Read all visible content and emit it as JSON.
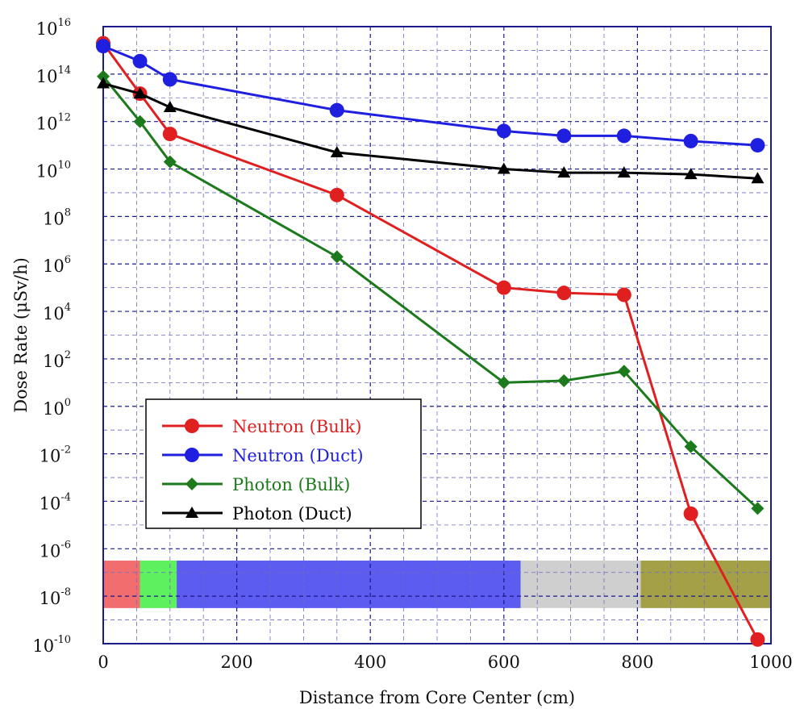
{
  "chart_data": {
    "type": "line",
    "xlabel": "Distance from Core Center (cm)",
    "ylabel": "Dose Rate (μSv/h)",
    "xlim": [
      0,
      1000
    ],
    "ylim": [
      -10,
      16
    ],
    "y_scale": "log10",
    "x_ticks": [
      "0",
      "200",
      "400",
      "600",
      "800",
      "1000"
    ],
    "y_ticks": [
      {
        "base": "10",
        "exp": "16"
      },
      {
        "base": "10",
        "exp": "14"
      },
      {
        "base": "10",
        "exp": "12"
      },
      {
        "base": "10",
        "exp": "10"
      },
      {
        "base": "10",
        "exp": "8"
      },
      {
        "base": "10",
        "exp": "6"
      },
      {
        "base": "10",
        "exp": "4"
      },
      {
        "base": "10",
        "exp": "2"
      },
      {
        "base": "10",
        "exp": "0"
      },
      {
        "base": "10",
        "exp": "-2"
      },
      {
        "base": "10",
        "exp": "-4"
      },
      {
        "base": "10",
        "exp": "-6"
      },
      {
        "base": "10",
        "exp": "-8"
      },
      {
        "base": "10",
        "exp": "-10"
      }
    ],
    "grid": true,
    "legend_position": "lower-left",
    "regions": [
      {
        "from": 0,
        "to": 55,
        "color": "#f26d6d"
      },
      {
        "from": 55,
        "to": 110,
        "color": "#5ef05e"
      },
      {
        "from": 110,
        "to": 625,
        "color": "#5c5cf0"
      },
      {
        "from": 625,
        "to": 805,
        "color": "#cfcfcf"
      },
      {
        "from": 805,
        "to": 1000,
        "color": "#a3a048"
      }
    ],
    "series": [
      {
        "name": "Neutron (Bulk)",
        "color": "#e02020",
        "marker": "circle",
        "x": [
          0,
          55,
          100,
          350,
          600,
          690,
          780,
          880,
          980
        ],
        "y": [
          2000000000000000.0,
          15000000000000.0,
          300000000000.0,
          800000000.0,
          100000.0,
          60000.0,
          50000.0,
          3e-05,
          1.5e-10
        ]
      },
      {
        "name": "Neutron (Duct)",
        "color": "#1f1fe0",
        "marker": "circle",
        "x": [
          0,
          55,
          100,
          350,
          600,
          690,
          780,
          880,
          980
        ],
        "y": [
          1500000000000000.0,
          350000000000000.0,
          60000000000000.0,
          3000000000000.0,
          400000000000.0,
          250000000000.0,
          250000000000.0,
          150000000000.0,
          100000000000.0
        ]
      },
      {
        "name": "Photon (Bulk)",
        "color": "#1c7a1c",
        "marker": "diamond",
        "x": [
          0,
          55,
          100,
          350,
          600,
          690,
          780,
          880,
          980
        ],
        "y": [
          80000000000000.0,
          1000000000000.0,
          20000000000.0,
          2000000.0,
          10,
          12,
          30,
          0.02,
          5e-05
        ]
      },
      {
        "name": "Photon (Duct)",
        "color": "#000000",
        "marker": "triangle",
        "x": [
          0,
          55,
          100,
          350,
          600,
          690,
          780,
          880,
          980
        ],
        "y": [
          40000000000000.0,
          15000000000000.0,
          4000000000000.0,
          50000000000.0,
          10000000000.0,
          7000000000.0,
          7000000000.0,
          6000000000.0,
          4000000000.0
        ]
      }
    ]
  }
}
